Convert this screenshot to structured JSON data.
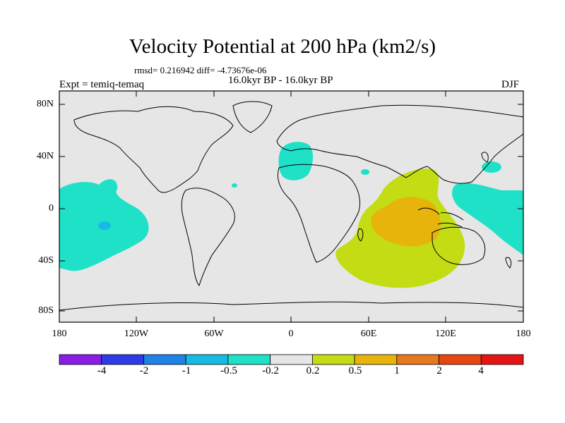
{
  "title": "Velocity Potential at 200 hPa (km2/s)",
  "stats": "rmsd= 0.216942 diff= -4.73676e-06",
  "period": "16.0kyr BP - 16.0kyr BP",
  "experiment": "Expt = temiq-temaq",
  "season": "DJF",
  "lat_labels": [
    "80N",
    "40N",
    "0",
    "40S",
    "80S"
  ],
  "lon_labels": [
    "180",
    "120W",
    "60W",
    "0",
    "60E",
    "120E",
    "180"
  ],
  "colorbar": {
    "labels": [
      "-4",
      "-2",
      "-1",
      "-0.5",
      "-0.2",
      "0.2",
      "0.5",
      "1",
      "2",
      "4"
    ],
    "colors": [
      "#8a1ee6",
      "#2d3ce6",
      "#1e82e6",
      "#19b9e6",
      "#1ee1c8",
      "#e6e6e6",
      "#c3dc14",
      "#e6b40a",
      "#e6781e",
      "#e6460f",
      "#e61414"
    ]
  },
  "colors": {
    "background": "#e6e6e6",
    "negative_weak": "#1ee1c8",
    "negative_mid": "#19b9e6",
    "positive_weak": "#c3dc14",
    "positive_mid": "#e6b40a",
    "coast": "#000000"
  }
}
